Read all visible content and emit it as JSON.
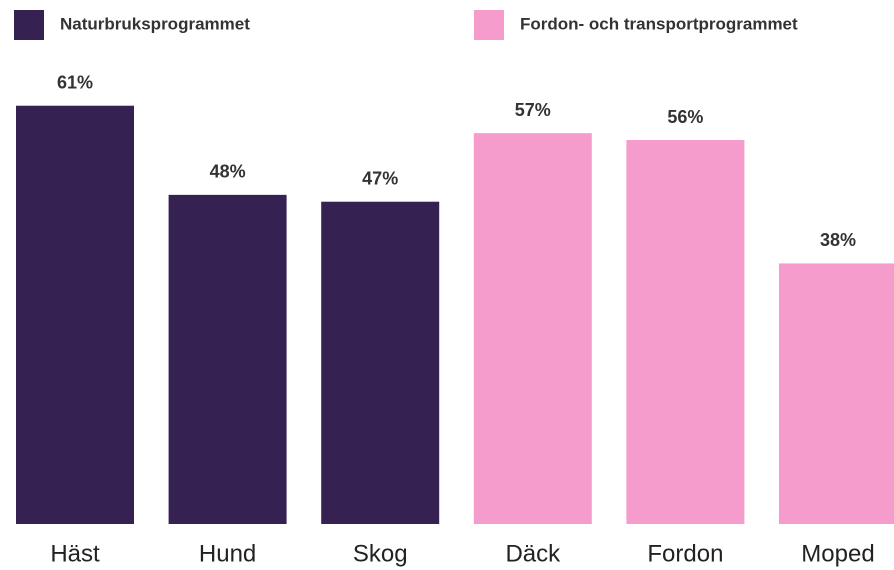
{
  "chart_data": {
    "type": "bar",
    "categories": [
      "Häst",
      "Hund",
      "Skog",
      "Däck",
      "Fordon",
      "Moped"
    ],
    "series": [
      {
        "name": "Naturbruksprogrammet",
        "color": "#352252",
        "values": [
          61,
          48,
          47,
          null,
          null,
          null
        ],
        "value_labels": [
          "61%",
          "48%",
          "47%",
          null,
          null,
          null
        ]
      },
      {
        "name": "Fordon- och transportprogrammet",
        "color": "#f69ccd",
        "values": [
          null,
          null,
          null,
          57,
          56,
          38
        ],
        "value_labels": [
          null,
          null,
          null,
          "57%",
          "56%",
          "38%"
        ]
      }
    ],
    "ylim": [
      0,
      70
    ],
    "legend": "top"
  }
}
